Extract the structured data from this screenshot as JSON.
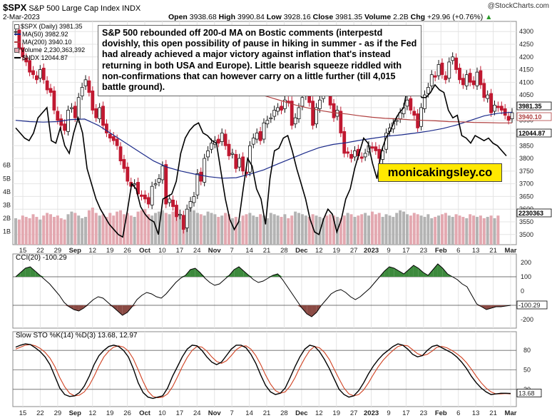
{
  "header": {
    "symbol": "$SPX",
    "name": "S&P 500 Large Cap Index INDX",
    "date": "2-Mar-2023",
    "open_label": "Open",
    "open": "3938.68",
    "high_label": "High",
    "high": "3990.84",
    "low_label": "Low",
    "low": "3928.16",
    "close_label": "Close",
    "close": "3981.35",
    "volume_label": "Volume",
    "volume": "2.2B",
    "chg_label": "Chg",
    "chg": "+29.96 (+0.76%)",
    "chg_arrow": "▲",
    "watermark": "@StockCharts.com"
  },
  "legend": {
    "spx": "$SPX (Daily) 3981.35",
    "ma50": "MA(50) 3982.92",
    "ma200": "MA(200) 3940.10",
    "volume": "Volume 2,230,363,392",
    "ndx": "$NDX 12044.87"
  },
  "annotation": "S&P 500 rebounded off 200-d MA on Bostic comments (interpestd dovishly, this open possibility of pause in hiking in summer - as if the Fed had already achieved a major victory against inflation that's instead returning in both USA and Europe). Little bearish squeeze riddled with non-confirmations that can however carry on a little further (till 4,015 battle ground).",
  "brand": "monicakingsley.co",
  "colors": {
    "up": "#111111",
    "down": "#c01830",
    "ma50": "#1b2a8a",
    "ma200": "#b04040",
    "vol_up": "#b3b3b3",
    "vol_down": "#e3a8b0",
    "cci_pos": "#3d8a3d",
    "cci_neg": "#8a4a44",
    "sto_k": "#000000",
    "sto_d": "#d04020"
  },
  "chart_data": [
    {
      "type": "candlestick",
      "title": "$SPX (Daily) 3981.35",
      "ylim": [
        3460,
        4340
      ],
      "y_ticks": [
        "4300",
        "4250",
        "4200",
        "4150",
        "4100",
        "4050",
        "4000",
        "3950",
        "3900",
        "3850",
        "3800",
        "3750",
        "3700",
        "3650",
        "3600",
        "3550",
        "3500"
      ],
      "last_price_labels": [
        "3981.35",
        "3940.10",
        "12044.87",
        "2230363"
      ],
      "volume_axis_labels": [
        "6B",
        "5B",
        "4B",
        "3B",
        "2B",
        "1B"
      ],
      "x_labels": [
        "15",
        "22",
        "29",
        "Sep",
        "12",
        "19",
        "26",
        "Oct",
        "10",
        "17",
        "24",
        "Nov",
        "7",
        "14",
        "21",
        "28",
        "Dec",
        "12",
        "19",
        "27",
        "2023",
        "9",
        "17",
        "23",
        "Feb",
        "6",
        "13",
        "21",
        "Mar"
      ],
      "series": [
        {
          "name": "$SPX",
          "close": [
            4300,
            4230,
            4200,
            4180,
            4140,
            4130,
            4110,
            4150,
            4110,
            4070,
            4060,
            3990,
            3950,
            3930,
            3910,
            3990,
            4000,
            3960,
            4040,
            4080,
            4110,
            4060,
            3990,
            3960,
            4000,
            3930,
            3900,
            3880,
            3870,
            3850,
            3790,
            3760,
            3710,
            3690,
            3700,
            3660,
            3650,
            3640,
            3620,
            3690,
            3700,
            3720,
            3770,
            3620,
            3640,
            3610,
            3570,
            3580,
            3520,
            3600,
            3630,
            3650,
            3740,
            3710,
            3800,
            3830,
            3860,
            3870,
            3860,
            3900,
            3850,
            3810,
            3820,
            3760,
            3800,
            3750,
            3740,
            3850,
            3880,
            3900,
            3870,
            3940,
            3950,
            3960,
            3990,
            4000,
            3990,
            4030,
            4020,
            3930,
            3960,
            4000,
            4040,
            4050,
            4020,
            3930,
            4000,
            4030,
            4080,
            4070,
            4010,
            3960,
            3990,
            3900,
            3820,
            3820,
            3800,
            3830,
            3810,
            3800,
            3820,
            3850,
            3840,
            3830,
            3800,
            3830,
            3900,
            3920,
            3940,
            3950,
            3980,
            4000,
            4030,
            3990,
            3970,
            3920,
            4000,
            4050,
            4080,
            4130,
            4120,
            4170,
            4130,
            4110,
            4180,
            4200,
            4150,
            4110,
            4090,
            4130,
            4100,
            4090,
            4140,
            4090,
            4040,
            4050,
            3980,
            4010,
            4000,
            3990,
            3970,
            3950,
            3980
          ]
        },
        {
          "name": "MA(50)",
          "values": [
            3950,
            3945,
            3943,
            3945,
            3953,
            3955,
            3930,
            3895,
            3860,
            3825,
            3790,
            3765,
            3750,
            3738,
            3728,
            3722,
            3724,
            3738,
            3755,
            3778,
            3800,
            3822,
            3842,
            3855,
            3862,
            3872,
            3880,
            3888,
            3893,
            3900,
            3908,
            3918,
            3932,
            3950,
            3968,
            3978,
            3982
          ]
        },
        {
          "name": "MA(200)",
          "values": [
            4100,
            4085,
            4070,
            4055,
            4040,
            4025,
            4010,
            3998,
            3988,
            3980,
            3975,
            3968,
            3962,
            3958,
            3956,
            3952,
            3950,
            3948,
            3945,
            3944,
            3942,
            3941,
            3940,
            3940
          ]
        },
        {
          "name": "$NDX",
          "values": [
            3920,
            3900,
            3880,
            3870,
            3900,
            3960,
            3980,
            4000,
            3870,
            3860,
            3920,
            3850,
            3820,
            3900,
            3960,
            3900,
            3760,
            3700,
            3640,
            3600,
            3570,
            3540,
            3520,
            3500,
            3490,
            3590,
            3700,
            3680,
            3610,
            3580,
            3560,
            3550,
            3500,
            3640,
            3650,
            3660,
            3710,
            3820,
            3880,
            3910,
            3930,
            3940,
            3900,
            3890,
            3870,
            3860,
            3750,
            3640,
            3560,
            3520,
            3550,
            3680,
            3800,
            3770,
            3680,
            3640,
            3540,
            3720,
            3830,
            3840,
            3880,
            3890,
            3830,
            3760,
            3700,
            3640,
            3560,
            3510,
            3500,
            3560,
            3600,
            3580,
            3510,
            3560,
            3640,
            3680,
            3760,
            3820,
            3880,
            3860,
            3780,
            3720,
            3830,
            3880,
            3910,
            3950,
            3980,
            4000,
            4100,
            4130,
            4080,
            4040,
            4040,
            4060,
            4090,
            4070,
            4060,
            3990,
            3960,
            3970,
            3890,
            3880,
            3860,
            3890,
            3880,
            3870,
            3880,
            3860,
            3850,
            3830,
            3810
          ]
        },
        {
          "name": "Volume",
          "values": [
            2.0,
            1.9,
            2.2,
            2.1,
            2.0,
            2.3,
            2.1,
            1.9,
            2.2,
            2.4,
            2.3,
            2.1,
            2.2,
            2.0,
            1.9,
            2.3,
            2.5,
            2.4,
            2.2,
            2.0,
            2.1,
            2.6,
            2.8,
            2.4,
            2.2,
            2.3,
            2.1,
            2.4,
            2.2,
            2.5,
            2.6,
            2.3,
            2.4,
            2.2,
            2.1,
            2.5,
            2.6,
            2.7,
            2.3,
            2.2,
            2.4,
            2.5,
            2.6,
            2.4,
            2.3,
            2.5,
            2.2,
            2.3,
            2.1,
            2.6,
            3.2,
            2.6,
            2.4,
            2.3,
            2.2,
            2.5,
            2.4,
            2.3,
            2.1,
            2.2,
            2.4,
            2.3,
            2.0,
            2.1,
            1.8,
            2.2,
            2.3,
            2.4,
            2.2,
            2.1,
            2.3,
            2.2,
            2.0,
            2.4,
            2.3,
            2.2,
            2.1,
            2.3,
            2.0,
            2.2,
            2.5,
            2.4,
            2.3,
            2.2,
            2.1,
            2.3,
            2.2,
            2.1,
            2.0,
            2.2,
            2.3,
            2.2,
            2.1,
            2.0,
            2.2,
            2.4,
            2.3,
            2.1,
            2.2,
            2.3,
            2.4,
            2.2,
            2.5,
            2.3,
            2.4,
            2.1,
            2.3,
            2.2,
            2.1,
            2.4,
            2.6,
            2.5,
            2.3,
            2.2,
            2.4,
            2.3,
            2.2,
            2.1,
            2.3,
            2.0,
            2.1,
            2.2,
            2.3,
            2.4,
            2.2,
            2.1,
            2.3,
            2.2,
            2.1,
            2.0,
            2.3,
            2.2,
            2.1,
            2.2,
            2.0,
            2.1,
            2.2,
            2.0,
            2.2
          ]
        }
      ]
    },
    {
      "type": "line",
      "title": "CCI(20) -100.29",
      "ylim": [
        -260,
        260
      ],
      "y_ticks": [
        "200",
        "100",
        "0",
        "-100",
        "-200"
      ],
      "ref_lines": [
        100,
        -100
      ],
      "last_label": "-100.29",
      "series": [
        {
          "name": "CCI(20)",
          "values": [
            100,
            130,
            160,
            170,
            140,
            110,
            80,
            50,
            10,
            -30,
            -80,
            -110,
            -130,
            -140,
            -120,
            -90,
            -60,
            -40,
            -50,
            -80,
            -110,
            -140,
            -170,
            -150,
            -110,
            -60,
            -30,
            -10,
            -20,
            -40,
            -50,
            -20,
            20,
            60,
            90,
            110,
            150,
            160,
            130,
            90,
            60,
            40,
            50,
            80,
            110,
            150,
            170,
            140,
            110,
            80,
            60,
            70,
            90,
            110,
            120,
            80,
            30,
            -20,
            -70,
            -120,
            -160,
            -180,
            -150,
            -100,
            -60,
            -20,
            0,
            10,
            -10,
            -40,
            -60,
            -40,
            -10,
            20,
            60,
            100,
            140,
            170,
            160,
            140,
            120,
            150,
            180,
            160,
            130,
            110,
            150,
            190,
            160,
            120,
            100,
            80,
            50,
            30,
            -30,
            -90,
            -110,
            -130,
            -120,
            -110,
            -110,
            -105,
            -100
          ]
        }
      ]
    },
    {
      "type": "line",
      "title": "Slow STO %K(14) %D(3) 13.68, 12.97",
      "ylim": [
        0,
        100
      ],
      "y_ticks": [
        "80",
        "50",
        "20"
      ],
      "ref_lines": [
        80,
        50,
        20
      ],
      "last_label": "13.68",
      "series": [
        {
          "name": "%K(14)",
          "values": [
            85,
            88,
            90,
            89,
            84,
            78,
            70,
            58,
            40,
            22,
            12,
            9,
            10,
            15,
            25,
            40,
            58,
            72,
            80,
            86,
            88,
            86,
            80,
            70,
            52,
            30,
            15,
            8,
            6,
            8,
            10,
            22,
            40,
            55,
            70,
            82,
            88,
            87,
            80,
            70,
            62,
            58,
            62,
            72,
            82,
            88,
            88,
            84,
            74,
            60,
            42,
            26,
            16,
            12,
            14,
            22,
            38,
            55,
            70,
            82,
            88,
            86,
            78,
            66,
            52,
            36,
            20,
            12,
            8,
            10,
            18,
            30,
            44,
            56,
            66,
            74,
            80,
            86,
            90,
            88,
            82,
            74,
            70,
            72,
            80,
            86,
            88,
            84,
            80,
            76,
            70,
            62,
            52,
            40,
            30,
            22,
            16,
            12,
            13,
            14,
            14,
            13.68
          ]
        },
        {
          "name": "%D(3)",
          "values": [
            82,
            85,
            88,
            89,
            87,
            83,
            77,
            68,
            55,
            38,
            24,
            14,
            10,
            11,
            16,
            26,
            40,
            56,
            70,
            79,
            85,
            87,
            85,
            79,
            67,
            50,
            32,
            17,
            9,
            7,
            8,
            13,
            24,
            39,
            55,
            69,
            80,
            86,
            85,
            79,
            70,
            63,
            60,
            64,
            72,
            81,
            86,
            87,
            82,
            72,
            58,
            42,
            28,
            18,
            14,
            16,
            25,
            38,
            54,
            68,
            80,
            86,
            84,
            77,
            66,
            51,
            36,
            22,
            13,
            10,
            12,
            19,
            30,
            43,
            55,
            65,
            73,
            80,
            86,
            88,
            87,
            81,
            75,
            72,
            74,
            79,
            85,
            86,
            84,
            80,
            75,
            69,
            61,
            51,
            40,
            30,
            22,
            16,
            13,
            13,
            13.5,
            12.97
          ]
        }
      ]
    }
  ]
}
